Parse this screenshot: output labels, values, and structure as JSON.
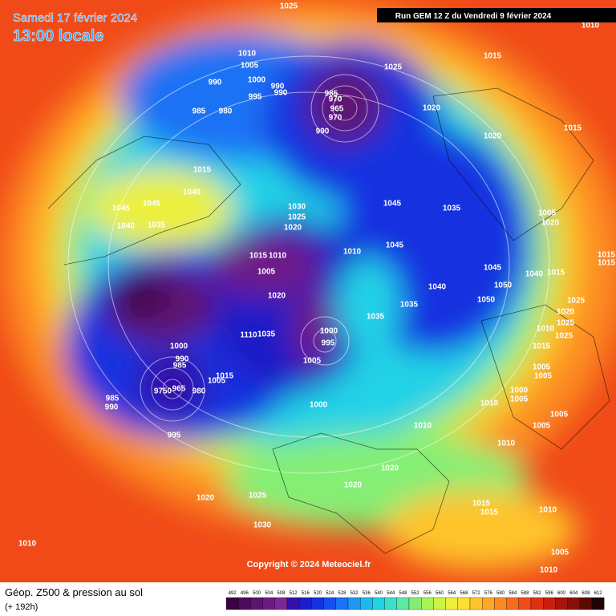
{
  "header": {
    "date": "Samedi 17 février 2024",
    "time": "13:00 locale",
    "run": "Run GEM 12 Z du Vendredi 9 février 2024"
  },
  "map": {
    "copyright": "Copyright © 2024 Meteociel.fr",
    "pressure_labels": [
      1025,
      1010,
      1010,
      1005,
      1000,
      990,
      995,
      990,
      990,
      985,
      970,
      965,
      970,
      990,
      985,
      980,
      1025,
      1015,
      1020,
      1015,
      1020,
      1015,
      1040,
      1045,
      1045,
      1040,
      1035,
      1030,
      1025,
      1020,
      1045,
      1035,
      1005,
      1010,
      1020,
      1045,
      1015,
      1010,
      1005,
      1020,
      1040,
      1045,
      1050,
      1040,
      1015,
      1050,
      1035,
      1035,
      1025,
      1020,
      1025,
      1010,
      1025,
      1000,
      995,
      1005,
      1035,
      1110,
      1000,
      990,
      985,
      1015,
      1005,
      9750,
      965,
      980,
      985,
      990,
      995,
      1000,
      1015,
      1005,
      1005,
      1000,
      1005,
      1010,
      1005,
      1005,
      1010,
      1010,
      1020,
      1020,
      1015,
      1015,
      1020,
      1025,
      1030,
      1010,
      1015,
      1010,
      1005,
      1010,
      1015
    ]
  },
  "footer": {
    "title": "Géop. Z500 & pression au sol",
    "lead": "(+ 192h)",
    "scale": {
      "values": [
        492,
        496,
        500,
        504,
        508,
        512,
        516,
        520,
        524,
        528,
        532,
        536,
        540,
        544,
        548,
        552,
        556,
        560,
        564,
        568,
        572,
        576,
        580,
        584,
        588,
        592,
        596,
        600,
        604,
        608,
        612
      ],
      "colors": [
        "#3a0040",
        "#4c0a5c",
        "#5e1272",
        "#6e1a86",
        "#7c2596",
        "#3010a8",
        "#1a1ec8",
        "#1432e0",
        "#1450f0",
        "#1a72f4",
        "#1e96f4",
        "#1eb8f0",
        "#22d2e6",
        "#3ce0c8",
        "#5ee8a0",
        "#84ee74",
        "#aaf25a",
        "#ccf446",
        "#ecf03c",
        "#fee034",
        "#fec42c",
        "#fea828",
        "#fc8a22",
        "#f86a1e",
        "#f04a18",
        "#e03014",
        "#c81e10",
        "#a8140c",
        "#88100a",
        "#5c0a06",
        "#200402"
      ]
    }
  }
}
